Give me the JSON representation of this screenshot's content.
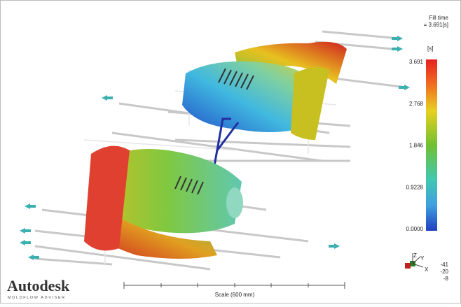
{
  "result": {
    "title": "Fill time",
    "value": "= 3.691[s]",
    "unit": "[s]",
    "ticks": [
      "3.691",
      "2.768",
      "1.846",
      "0.9228",
      "0.0000"
    ]
  },
  "scale": {
    "label": "Scale (600 mm)"
  },
  "triad": {
    "axes": [
      "Z",
      "Y",
      "X"
    ],
    "values": [
      "-41",
      "-20",
      "-8"
    ]
  },
  "logo": {
    "name": "Autodesk",
    "tagline": "MOLDFLOW ADVISER"
  }
}
